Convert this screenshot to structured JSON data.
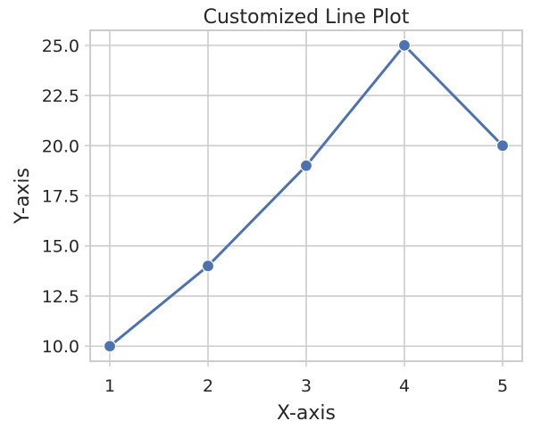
{
  "chart_data": {
    "type": "line",
    "title": "Customized Line Plot",
    "xlabel": "X-axis",
    "ylabel": "Y-axis",
    "x": [
      1,
      2,
      3,
      4,
      5
    ],
    "series": [
      {
        "values": [
          10,
          14,
          19,
          25,
          20
        ],
        "color": "#4c72b0",
        "marker": "circle"
      }
    ],
    "xlim": [
      0.8,
      5.2
    ],
    "ylim": [
      9.25,
      25.75
    ],
    "xticks": [
      1,
      2,
      3,
      4,
      5
    ],
    "xtick_labels": [
      "1",
      "2",
      "3",
      "4",
      "5"
    ],
    "yticks": [
      10,
      12.5,
      15,
      17.5,
      20,
      22.5,
      25
    ],
    "ytick_labels": [
      "10.0",
      "12.5",
      "15.0",
      "17.5",
      "20.0",
      "22.5",
      "25.0"
    ],
    "grid": true,
    "grid_color": "#cccccc",
    "legend": false
  }
}
